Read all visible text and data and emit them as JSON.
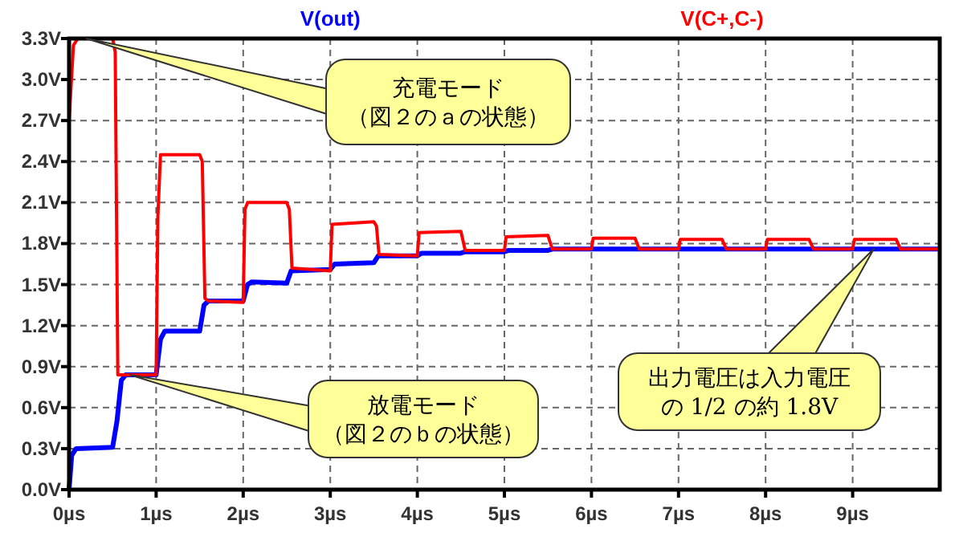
{
  "chart_data": {
    "type": "line",
    "legend": "top",
    "grid": true,
    "line_style": "solid",
    "marker": "none",
    "xlim": [
      0,
      10
    ],
    "ylim": [
      0,
      3.3
    ],
    "xticks": [
      {
        "value": 0,
        "label": "0µs"
      },
      {
        "value": 1,
        "label": "1µs"
      },
      {
        "value": 2,
        "label": "2µs"
      },
      {
        "value": 3,
        "label": "3µs"
      },
      {
        "value": 4,
        "label": "4µs"
      },
      {
        "value": 5,
        "label": "5µs"
      },
      {
        "value": 6,
        "label": "6µs"
      },
      {
        "value": 7,
        "label": "7µs"
      },
      {
        "value": 8,
        "label": "8µs"
      },
      {
        "value": 9,
        "label": "9µs"
      }
    ],
    "yticks": [
      {
        "value": 0,
        "label": "0.0V"
      },
      {
        "value": 0.3,
        "label": "0.3V"
      },
      {
        "value": 0.6,
        "label": "0.6V"
      },
      {
        "value": 0.9,
        "label": "0.9V"
      },
      {
        "value": 1.2,
        "label": "1.2V"
      },
      {
        "value": 1.5,
        "label": "1.5V"
      },
      {
        "value": 1.8,
        "label": "1.8V"
      },
      {
        "value": 2.1,
        "label": "2.1V"
      },
      {
        "value": 2.4,
        "label": "2.4V"
      },
      {
        "value": 2.7,
        "label": "2.7V"
      },
      {
        "value": 3.0,
        "label": "3.0V"
      },
      {
        "value": 3.3,
        "label": "3.3V"
      }
    ],
    "series": [
      {
        "name": "V(out)",
        "color": "#0000ff",
        "x": [
          0,
          0.03,
          0.08,
          0.5,
          0.55,
          0.6,
          0.65,
          1.0,
          1.05,
          1.1,
          1.5,
          1.55,
          1.6,
          2.0,
          2.05,
          2.1,
          2.5,
          2.55,
          3.0,
          3.05,
          3.5,
          3.55,
          4.0,
          4.05,
          4.5,
          4.55,
          5.0,
          5.05,
          5.5,
          5.55,
          10
        ],
        "values": [
          0,
          0.25,
          0.3,
          0.31,
          0.5,
          0.8,
          0.84,
          0.84,
          1.1,
          1.16,
          1.16,
          1.35,
          1.38,
          1.38,
          1.5,
          1.52,
          1.51,
          1.6,
          1.61,
          1.65,
          1.66,
          1.71,
          1.71,
          1.73,
          1.73,
          1.74,
          1.74,
          1.75,
          1.75,
          1.76,
          1.76
        ]
      },
      {
        "name": "V(C+,C-)",
        "color": "#ff0000",
        "x": [
          0,
          0.05,
          0.1,
          0.5,
          0.53,
          0.56,
          1.0,
          1.02,
          1.05,
          1.5,
          1.53,
          1.56,
          1.6,
          2.0,
          2.02,
          2.05,
          2.5,
          2.53,
          2.56,
          3.0,
          3.02,
          3.5,
          3.53,
          3.56,
          4.0,
          4.02,
          4.5,
          4.55,
          5.0,
          5.02,
          5.5,
          5.55,
          6.0,
          6.02,
          6.5,
          6.55,
          7.0,
          7.02,
          7.5,
          7.55,
          8.0,
          8.02,
          8.5,
          8.55,
          9.0,
          9.02,
          9.5,
          9.55,
          10
        ],
        "values": [
          2.7,
          3.25,
          3.3,
          3.3,
          3.2,
          0.84,
          0.84,
          2.0,
          2.45,
          2.45,
          2.4,
          1.4,
          1.38,
          1.37,
          2.05,
          2.1,
          2.1,
          2.05,
          1.62,
          1.6,
          1.94,
          1.96,
          1.93,
          1.72,
          1.71,
          1.88,
          1.89,
          1.75,
          1.75,
          1.85,
          1.86,
          1.76,
          1.76,
          1.84,
          1.84,
          1.76,
          1.76,
          1.83,
          1.83,
          1.76,
          1.76,
          1.83,
          1.83,
          1.76,
          1.76,
          1.83,
          1.83,
          1.76,
          1.76
        ]
      }
    ],
    "annotations": [
      {
        "text": "充電モード（図２のａの状態）",
        "x": 0.2,
        "y": 3.3
      },
      {
        "text": "放電モード（図２のｂの状態）",
        "x": 0.7,
        "y": 0.84
      },
      "出力電圧は入力電圧の 1/2 の約 1.8V"
    ]
  }
}
